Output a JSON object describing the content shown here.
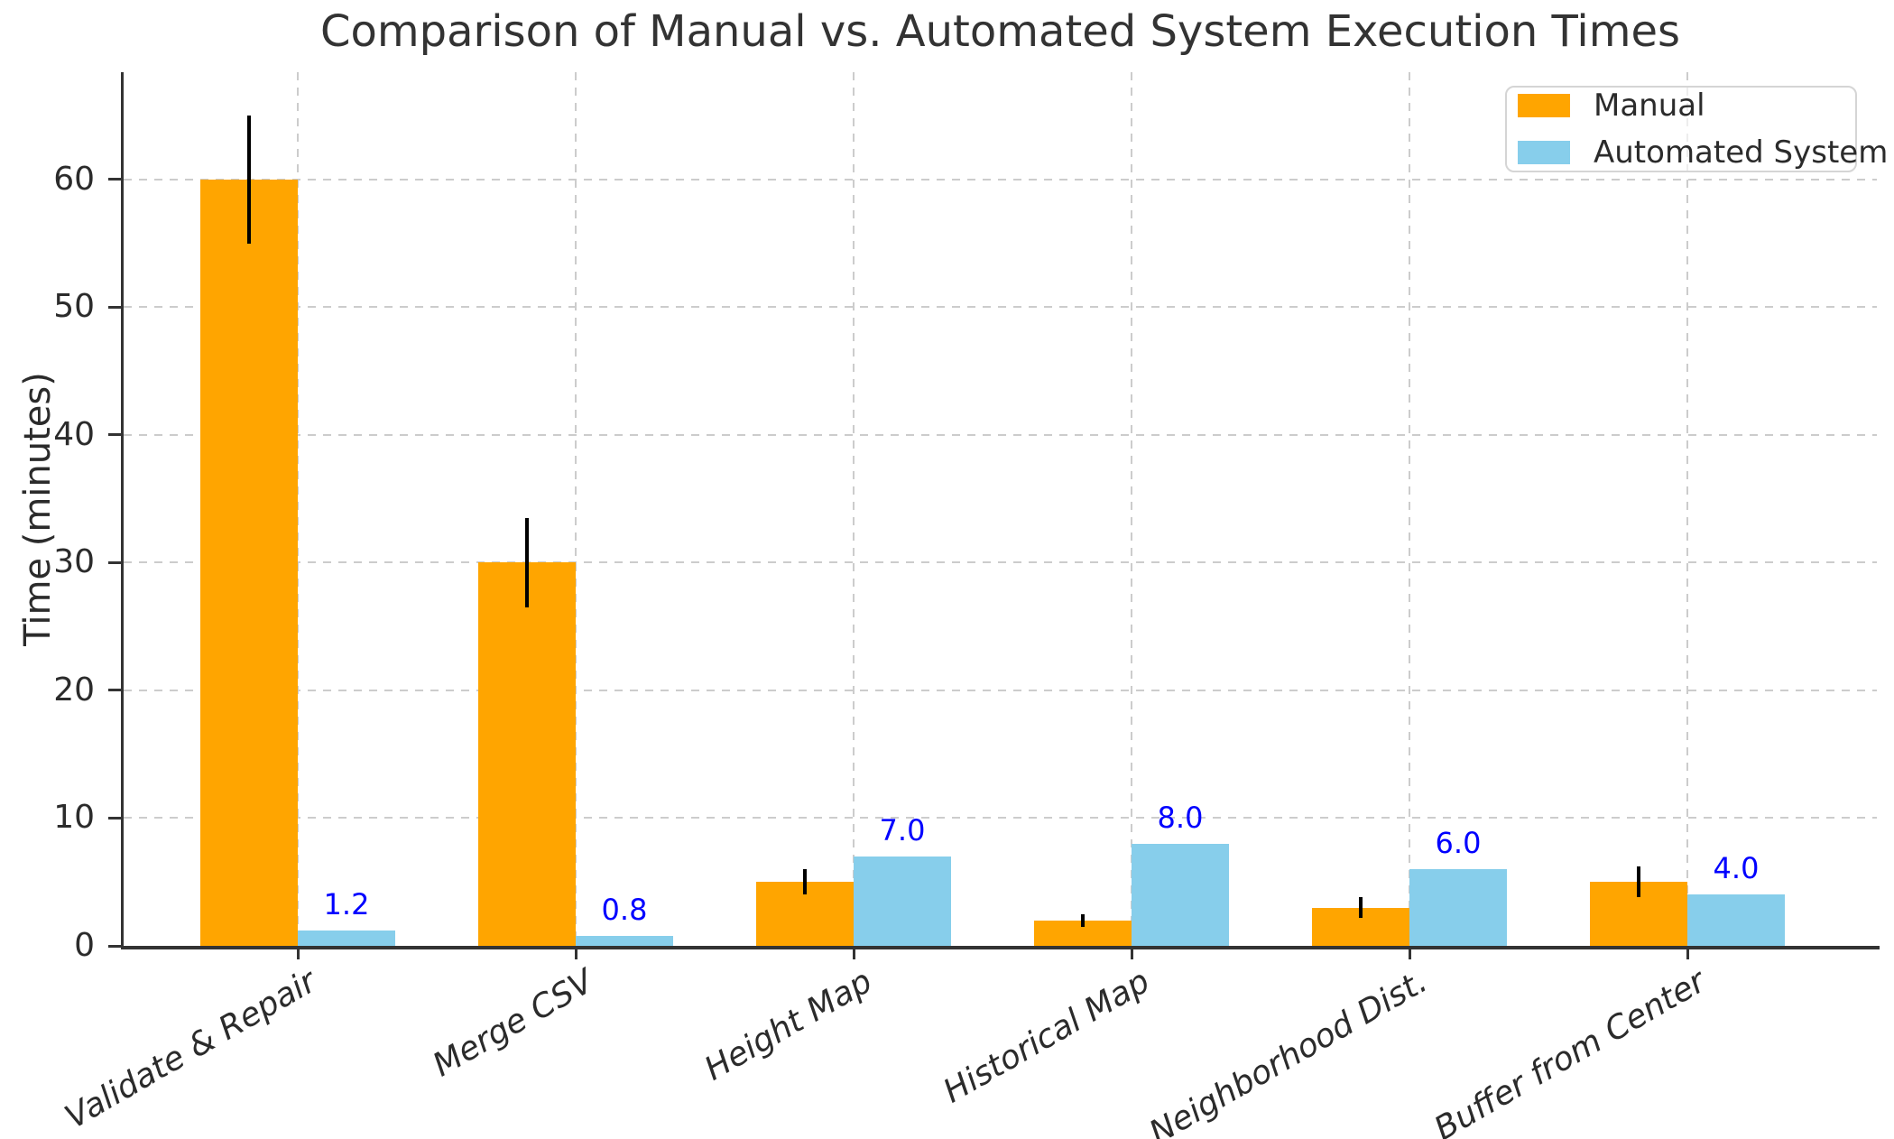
{
  "chart_data": {
    "type": "bar",
    "title": "Comparison of Manual vs. Automated System Execution Times",
    "ylabel": "Time (minutes)",
    "xlabel": "",
    "categories": [
      "Validate & Repair",
      "Merge CSV",
      "Height Map",
      "Historical Map",
      "Neighborhood Dist.",
      "Buffer from Center"
    ],
    "series": [
      {
        "name": "Manual",
        "color": "#FFA500",
        "values": [
          60,
          30,
          5,
          2,
          3,
          5
        ],
        "error_bars": [
          5,
          3.5,
          1,
          0.5,
          0.8,
          1.2
        ],
        "error_bar_color": "#000000"
      },
      {
        "name": "Automated System",
        "color": "#87CEEB",
        "values": [
          1.2,
          0.8,
          7.0,
          8.0,
          6.0,
          4.0
        ],
        "value_labels": [
          "1.2",
          "0.8",
          "7.0",
          "8.0",
          "6.0",
          "4.0"
        ],
        "value_label_color": "#0000FF"
      }
    ],
    "yticks": [
      0,
      10,
      20,
      30,
      40,
      50,
      60
    ],
    "ylim": [
      0,
      68.4
    ],
    "grid": {
      "show": true,
      "style": "dashed",
      "color": "#cccccc",
      "horizontal": true,
      "vertical": true
    },
    "legend": {
      "position": "upper right"
    },
    "x_tick_label_rotation_deg": 30,
    "x_tick_label_style": "italic"
  }
}
